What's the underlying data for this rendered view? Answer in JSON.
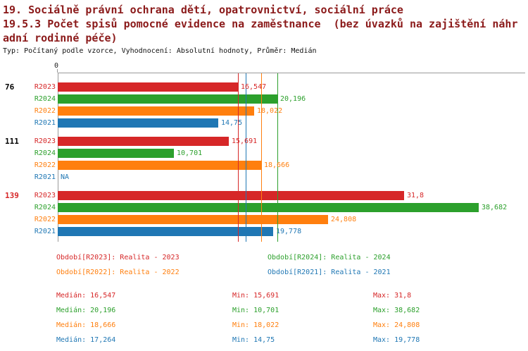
{
  "title": {
    "line1": "19. Sociálně právní ochrana dětí, opatrovnictví, sociální práce",
    "line2": "19.5.3 Počet spisů pomocné evidence na zaměstnance  (bez úvazků na zajištění náhr",
    "line3": "adní rodinné péče)",
    "subtitle": "Typ: Počítaný podle vzorce, Vyhodnocení: Absolutní hodnoty, Průměr: Medián"
  },
  "colors": {
    "title": "#8b1a1a",
    "R2023": "#d62728",
    "R2024": "#2ca02c",
    "R2022": "#ff7f0e",
    "R2021": "#1f77b4"
  },
  "axis": {
    "zero_label": "0"
  },
  "chart_data": {
    "type": "bar",
    "orientation": "horizontal",
    "title": "19.5.3 Počet spisů pomocné evidence na zaměstnance (bez úvazků na zajištění náhradní rodinné péče)",
    "xlim": [
      0,
      40
    ],
    "series_names": [
      "R2023",
      "R2024",
      "R2022",
      "R2021"
    ],
    "groups": [
      {
        "name": "76",
        "name_color": "#000000",
        "bars": [
          {
            "series": "R2023",
            "value": 16.547,
            "display": "16,547"
          },
          {
            "series": "R2024",
            "value": 20.196,
            "display": "20,196"
          },
          {
            "series": "R2022",
            "value": 18.022,
            "display": "18,022"
          },
          {
            "series": "R2021",
            "value": 14.75,
            "display": "14,75"
          }
        ]
      },
      {
        "name": "111",
        "name_color": "#000000",
        "bars": [
          {
            "series": "R2023",
            "value": 15.691,
            "display": "15,691"
          },
          {
            "series": "R2024",
            "value": 10.701,
            "display": "10,701"
          },
          {
            "series": "R2022",
            "value": 18.666,
            "display": "18,666"
          },
          {
            "series": "R2021",
            "value": null,
            "display": "NA"
          }
        ]
      },
      {
        "name": "139",
        "name_color": "#d62728",
        "bars": [
          {
            "series": "R2023",
            "value": 31.8,
            "display": "31,8"
          },
          {
            "series": "R2024",
            "value": 38.682,
            "display": "38,682"
          },
          {
            "series": "R2022",
            "value": 24.808,
            "display": "24,808"
          },
          {
            "series": "R2021",
            "value": 19.778,
            "display": "19,778"
          }
        ]
      }
    ],
    "median_lines": [
      {
        "series": "R2023",
        "value": 16.547
      },
      {
        "series": "R2024",
        "value": 20.196
      },
      {
        "series": "R2022",
        "value": 18.666
      },
      {
        "series": "R2021",
        "value": 17.264
      }
    ]
  },
  "legend": {
    "items": [
      {
        "series": "R2023",
        "text": "Období[R2023]: Realita - 2023"
      },
      {
        "series": "R2024",
        "text": "Období[R2024]: Realita - 2024"
      },
      {
        "series": "R2022",
        "text": "Období[R2022]: Realita - 2022"
      },
      {
        "series": "R2021",
        "text": "Období[R2021]: Realita - 2021"
      }
    ]
  },
  "stats": {
    "rows": [
      {
        "series": "R2023",
        "median": "Medián: 16,547",
        "min": "Min: 15,691",
        "max": "Max: 31,8"
      },
      {
        "series": "R2024",
        "median": "Medián: 20,196",
        "min": "Min: 10,701",
        "max": "Max: 38,682"
      },
      {
        "series": "R2022",
        "median": "Medián: 18,666",
        "min": "Min: 18,022",
        "max": "Max: 24,808"
      },
      {
        "series": "R2021",
        "median": "Medián: 17,264",
        "min": "Min: 14,75",
        "max": "Max: 19,778"
      }
    ]
  }
}
